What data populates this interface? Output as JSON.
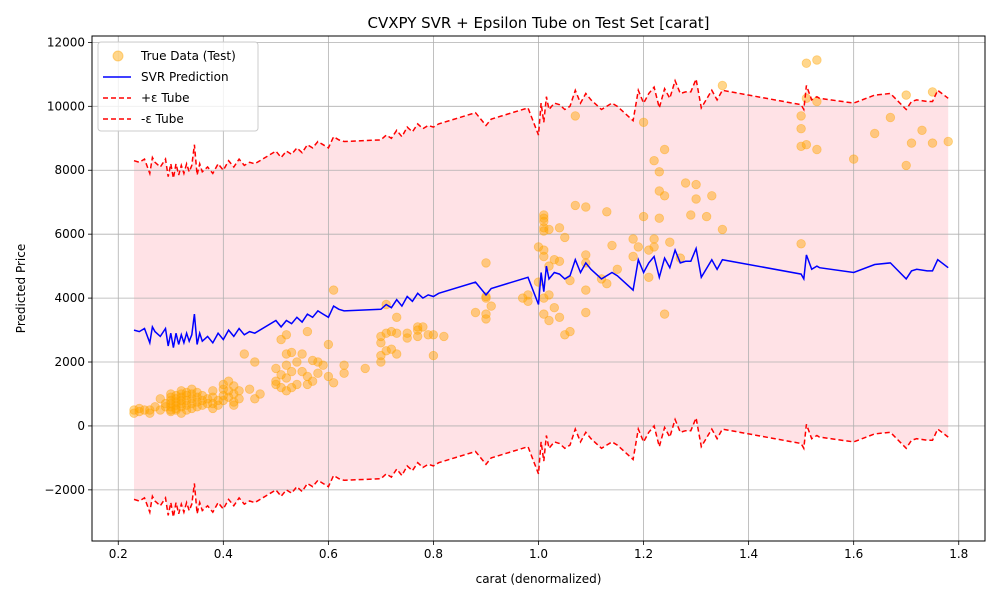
{
  "chart_data": {
    "type": "scatter",
    "title": "CVXPY SVR + Epsilon Tube on Test Set [carat]",
    "xlabel": "carat (denormalized)",
    "ylabel": "Predicted Price",
    "xlim": [
      0.15,
      1.85
    ],
    "ylim": [
      -3600,
      12200
    ],
    "x_ticks": [
      "0.2",
      "0.4",
      "0.6",
      "0.8",
      "1.0",
      "1.2",
      "1.4",
      "1.6",
      "1.8"
    ],
    "x_tick_values": [
      0.2,
      0.4,
      0.6,
      0.8,
      1.0,
      1.2,
      1.4,
      1.6,
      1.8
    ],
    "y_ticks": [
      "−2000",
      "0",
      "2000",
      "4000",
      "6000",
      "8000",
      "10000",
      "12000"
    ],
    "y_tick_values": [
      -2000,
      0,
      2000,
      4000,
      6000,
      8000,
      10000,
      12000
    ],
    "grid": true,
    "legend_position": "top-left",
    "epsilon": 5300,
    "colors": {
      "scatter": "#ffa500",
      "prediction": "#0000ff",
      "tube": "#ff0000",
      "fill": "#ffb6c1"
    },
    "legend": [
      {
        "label": "True Data (Test)",
        "style": "marker"
      },
      {
        "label": "SVR Prediction",
        "style": "solid"
      },
      {
        "label": "+ε Tube",
        "style": "dashed"
      },
      {
        "label": "-ε Tube",
        "style": "dashed"
      }
    ],
    "prediction": {
      "name": "SVR Prediction",
      "x": [
        0.23,
        0.24,
        0.25,
        0.26,
        0.265,
        0.27,
        0.28,
        0.29,
        0.295,
        0.3,
        0.305,
        0.31,
        0.315,
        0.32,
        0.325,
        0.33,
        0.335,
        0.34,
        0.345,
        0.35,
        0.355,
        0.36,
        0.37,
        0.38,
        0.39,
        0.4,
        0.41,
        0.42,
        0.43,
        0.44,
        0.45,
        0.46,
        0.5,
        0.51,
        0.52,
        0.53,
        0.54,
        0.55,
        0.56,
        0.57,
        0.58,
        0.59,
        0.6,
        0.61,
        0.62,
        0.63,
        0.7,
        0.71,
        0.72,
        0.73,
        0.74,
        0.75,
        0.76,
        0.77,
        0.78,
        0.79,
        0.8,
        0.81,
        0.88,
        0.9,
        0.91,
        0.98,
        1.0,
        1.005,
        1.01,
        1.015,
        1.02,
        1.03,
        1.04,
        1.05,
        1.06,
        1.07,
        1.08,
        1.09,
        1.1,
        1.12,
        1.14,
        1.15,
        1.18,
        1.19,
        1.2,
        1.21,
        1.22,
        1.23,
        1.24,
        1.25,
        1.26,
        1.27,
        1.28,
        1.29,
        1.3,
        1.31,
        1.33,
        1.34,
        1.35,
        1.5,
        1.505,
        1.51,
        1.52,
        1.53,
        1.535,
        1.6,
        1.64,
        1.67,
        1.7,
        1.71,
        1.72,
        1.74,
        1.75,
        1.76,
        1.78
      ],
      "values": [
        3000,
        2950,
        3050,
        2600,
        3100,
        2950,
        2800,
        3050,
        2500,
        2900,
        2450,
        2900,
        2550,
        2850,
        2600,
        2900,
        2650,
        2850,
        3500,
        2550,
        2900,
        2650,
        2800,
        2600,
        2900,
        2700,
        3000,
        2800,
        3050,
        2850,
        2950,
        2900,
        3300,
        3100,
        3300,
        3200,
        3400,
        3250,
        3500,
        3400,
        3600,
        3500,
        3400,
        3750,
        3650,
        3600,
        3650,
        3800,
        3700,
        3950,
        3750,
        4050,
        3900,
        4150,
        4000,
        4100,
        4050,
        4150,
        4500,
        4100,
        4300,
        4650,
        3800,
        4800,
        4200,
        5000,
        4600,
        4800,
        4750,
        4600,
        4700,
        5200,
        4800,
        5100,
        4900,
        4600,
        4800,
        4700,
        4250,
        5200,
        4800,
        5100,
        5300,
        4650,
        5250,
        4950,
        5500,
        5100,
        5150,
        5150,
        5550,
        4650,
        5200,
        4900,
        5200,
        4750,
        4600,
        5350,
        4900,
        5000,
        4950,
        4800,
        5050,
        5100,
        4600,
        4850,
        4900,
        4850,
        4850,
        5200,
        4950
      ]
    },
    "scatter": {
      "name": "True Data (Test)",
      "points": [
        [
          0.23,
          400
        ],
        [
          0.23,
          500
        ],
        [
          0.24,
          550
        ],
        [
          0.24,
          450
        ],
        [
          0.25,
          500
        ],
        [
          0.26,
          400
        ],
        [
          0.26,
          500
        ],
        [
          0.27,
          600
        ],
        [
          0.28,
          850
        ],
        [
          0.28,
          500
        ],
        [
          0.29,
          700
        ],
        [
          0.29,
          600
        ],
        [
          0.3,
          500
        ],
        [
          0.3,
          600
        ],
        [
          0.3,
          700
        ],
        [
          0.3,
          800
        ],
        [
          0.3,
          900
        ],
        [
          0.3,
          1000
        ],
        [
          0.3,
          450
        ],
        [
          0.31,
          550
        ],
        [
          0.31,
          650
        ],
        [
          0.31,
          750
        ],
        [
          0.31,
          850
        ],
        [
          0.31,
          950
        ],
        [
          0.31,
          500
        ],
        [
          0.32,
          600
        ],
        [
          0.32,
          700
        ],
        [
          0.32,
          800
        ],
        [
          0.32,
          900
        ],
        [
          0.32,
          1000
        ],
        [
          0.32,
          1100
        ],
        [
          0.32,
          400
        ],
        [
          0.33,
          500
        ],
        [
          0.33,
          650
        ],
        [
          0.33,
          800
        ],
        [
          0.33,
          950
        ],
        [
          0.33,
          1050
        ],
        [
          0.34,
          550
        ],
        [
          0.34,
          700
        ],
        [
          0.34,
          850
        ],
        [
          0.34,
          1000
        ],
        [
          0.34,
          1150
        ],
        [
          0.35,
          600
        ],
        [
          0.35,
          750
        ],
        [
          0.35,
          900
        ],
        [
          0.35,
          1050
        ],
        [
          0.36,
          650
        ],
        [
          0.36,
          800
        ],
        [
          0.36,
          950
        ],
        [
          0.37,
          700
        ],
        [
          0.37,
          850
        ],
        [
          0.38,
          550
        ],
        [
          0.38,
          700
        ],
        [
          0.38,
          900
        ],
        [
          0.38,
          1100
        ],
        [
          0.39,
          650
        ],
        [
          0.39,
          800
        ],
        [
          0.4,
          800
        ],
        [
          0.4,
          950
        ],
        [
          0.4,
          1150
        ],
        [
          0.4,
          1300
        ],
        [
          0.41,
          900
        ],
        [
          0.41,
          1100
        ],
        [
          0.41,
          1400
        ],
        [
          0.42,
          650
        ],
        [
          0.42,
          750
        ],
        [
          0.42,
          1000
        ],
        [
          0.42,
          1250
        ],
        [
          0.43,
          850
        ],
        [
          0.43,
          1100
        ],
        [
          0.44,
          2250
        ],
        [
          0.45,
          1150
        ],
        [
          0.46,
          850
        ],
        [
          0.46,
          2000
        ],
        [
          0.47,
          1000
        ],
        [
          0.5,
          1300
        ],
        [
          0.5,
          1400
        ],
        [
          0.5,
          1800
        ],
        [
          0.51,
          1200
        ],
        [
          0.51,
          1600
        ],
        [
          0.51,
          2700
        ],
        [
          0.52,
          1100
        ],
        [
          0.52,
          1500
        ],
        [
          0.52,
          1900
        ],
        [
          0.52,
          2250
        ],
        [
          0.52,
          2850
        ],
        [
          0.53,
          1200
        ],
        [
          0.53,
          1700
        ],
        [
          0.53,
          2300
        ],
        [
          0.54,
          1300
        ],
        [
          0.54,
          2000
        ],
        [
          0.55,
          1700
        ],
        [
          0.55,
          2250
        ],
        [
          0.56,
          1300
        ],
        [
          0.56,
          1550
        ],
        [
          0.56,
          2950
        ],
        [
          0.57,
          1400
        ],
        [
          0.57,
          2050
        ],
        [
          0.58,
          1650
        ],
        [
          0.58,
          2000
        ],
        [
          0.59,
          1900
        ],
        [
          0.6,
          1550
        ],
        [
          0.6,
          2550
        ],
        [
          0.61,
          1350
        ],
        [
          0.61,
          4250
        ],
        [
          0.63,
          1650
        ],
        [
          0.63,
          1900
        ],
        [
          0.67,
          1800
        ],
        [
          0.7,
          2000
        ],
        [
          0.7,
          2200
        ],
        [
          0.7,
          2600
        ],
        [
          0.7,
          2800
        ],
        [
          0.71,
          2350
        ],
        [
          0.71,
          2900
        ],
        [
          0.71,
          3800
        ],
        [
          0.72,
          2400
        ],
        [
          0.72,
          2950
        ],
        [
          0.73,
          2250
        ],
        [
          0.73,
          2900
        ],
        [
          0.73,
          3400
        ],
        [
          0.75,
          2750
        ],
        [
          0.75,
          2900
        ],
        [
          0.77,
          3000
        ],
        [
          0.77,
          2800
        ],
        [
          0.77,
          3100
        ],
        [
          0.78,
          3100
        ],
        [
          0.79,
          2850
        ],
        [
          0.8,
          2850
        ],
        [
          0.8,
          2200
        ],
        [
          0.82,
          2800
        ],
        [
          0.88,
          3550
        ],
        [
          0.9,
          3350
        ],
        [
          0.9,
          3500
        ],
        [
          0.9,
          4000
        ],
        [
          0.9,
          4050
        ],
        [
          0.9,
          5100
        ],
        [
          0.91,
          3750
        ],
        [
          0.97,
          4000
        ],
        [
          0.98,
          3900
        ],
        [
          0.98,
          4100
        ],
        [
          1.0,
          4500
        ],
        [
          1.0,
          5600
        ],
        [
          1.01,
          3500
        ],
        [
          1.01,
          4000
        ],
        [
          1.01,
          5300
        ],
        [
          1.01,
          5500
        ],
        [
          1.01,
          6100
        ],
        [
          1.01,
          6200
        ],
        [
          1.01,
          6400
        ],
        [
          1.01,
          6500
        ],
        [
          1.01,
          6600
        ],
        [
          1.02,
          3300
        ],
        [
          1.02,
          4100
        ],
        [
          1.02,
          5000
        ],
        [
          1.02,
          6150
        ],
        [
          1.03,
          3700
        ],
        [
          1.03,
          5200
        ],
        [
          1.04,
          3400
        ],
        [
          1.04,
          5150
        ],
        [
          1.04,
          6200
        ],
        [
          1.05,
          2850
        ],
        [
          1.05,
          5900
        ],
        [
          1.06,
          2950
        ],
        [
          1.06,
          4550
        ],
        [
          1.07,
          6900
        ],
        [
          1.07,
          9700
        ],
        [
          1.09,
          3550
        ],
        [
          1.09,
          4250
        ],
        [
          1.09,
          5100
        ],
        [
          1.09,
          5350
        ],
        [
          1.09,
          6850
        ],
        [
          1.12,
          4600
        ],
        [
          1.13,
          4450
        ],
        [
          1.13,
          6700
        ],
        [
          1.14,
          5650
        ],
        [
          1.15,
          4900
        ],
        [
          1.18,
          5300
        ],
        [
          1.18,
          5850
        ],
        [
          1.19,
          5600
        ],
        [
          1.2,
          9500
        ],
        [
          1.2,
          6550
        ],
        [
          1.21,
          5500
        ],
        [
          1.21,
          4650
        ],
        [
          1.22,
          5850
        ],
        [
          1.22,
          5600
        ],
        [
          1.22,
          8300
        ],
        [
          1.23,
          7950
        ],
        [
          1.23,
          7350
        ],
        [
          1.23,
          6500
        ],
        [
          1.24,
          7200
        ],
        [
          1.24,
          8650
        ],
        [
          1.24,
          3500
        ],
        [
          1.25,
          5750
        ],
        [
          1.27,
          5250
        ],
        [
          1.28,
          7600
        ],
        [
          1.29,
          6600
        ],
        [
          1.3,
          7550
        ],
        [
          1.3,
          7100
        ],
        [
          1.32,
          6550
        ],
        [
          1.33,
          7200
        ],
        [
          1.35,
          6150
        ],
        [
          1.35,
          10650
        ],
        [
          1.5,
          9700
        ],
        [
          1.5,
          9300
        ],
        [
          1.5,
          8750
        ],
        [
          1.5,
          5700
        ],
        [
          1.51,
          11350
        ],
        [
          1.51,
          10250
        ],
        [
          1.51,
          8800
        ],
        [
          1.53,
          11450
        ],
        [
          1.53,
          10150
        ],
        [
          1.53,
          8650
        ],
        [
          1.6,
          8350
        ],
        [
          1.64,
          9150
        ],
        [
          1.67,
          9650
        ],
        [
          1.7,
          10350
        ],
        [
          1.7,
          8150
        ],
        [
          1.71,
          8850
        ],
        [
          1.73,
          9250
        ],
        [
          1.75,
          8850
        ],
        [
          1.75,
          10450
        ],
        [
          1.78,
          8900
        ]
      ]
    }
  }
}
